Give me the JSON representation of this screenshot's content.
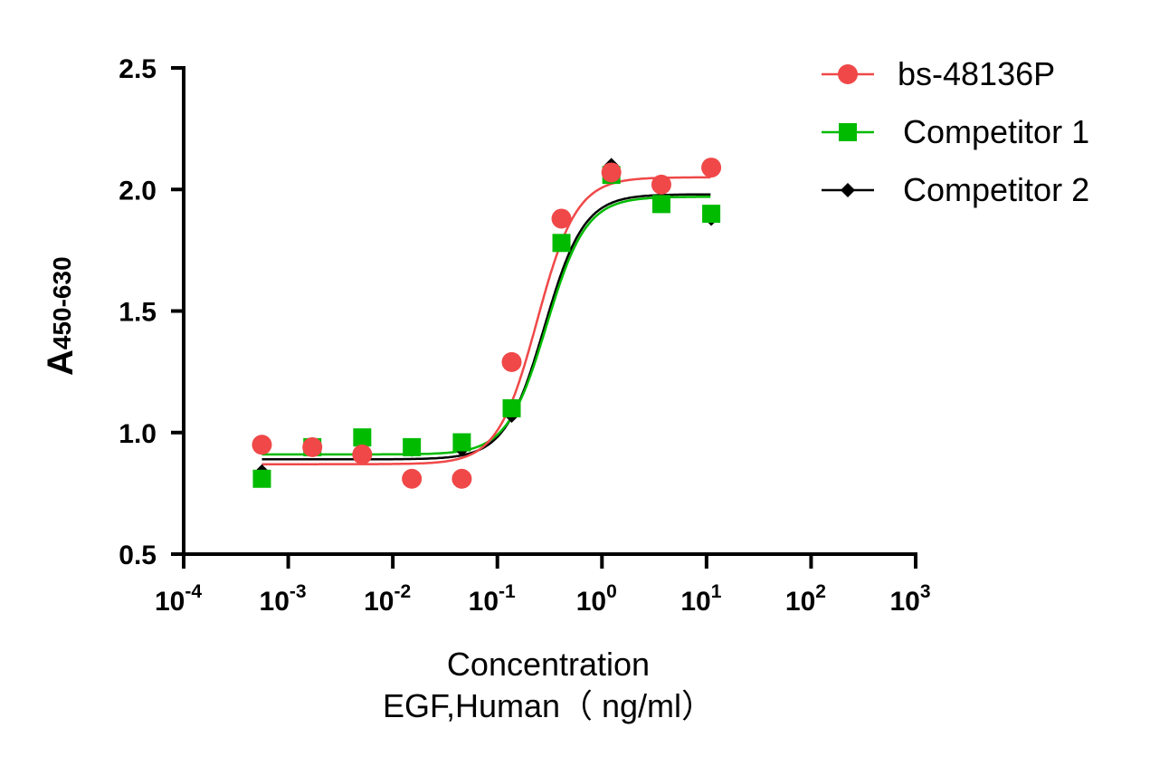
{
  "chart_data": {
    "type": "scatter",
    "title": "",
    "xlabel": "Concentration",
    "xlabel2": "EGF,Human（ ng/ml）",
    "ylabel_main": "A",
    "ylabel_sub": "450-630",
    "xscale": "log",
    "xlim_log10": [
      -4,
      3
    ],
    "ylim": [
      0.5,
      2.5
    ],
    "x_ticks": [
      {
        "base": "10",
        "exp": "-4"
      },
      {
        "base": "10",
        "exp": "-3"
      },
      {
        "base": "10",
        "exp": "-2"
      },
      {
        "base": "10",
        "exp": "-1"
      },
      {
        "base": "10",
        "exp": "0"
      },
      {
        "base": "10",
        "exp": "1"
      },
      {
        "base": "10",
        "exp": "2"
      },
      {
        "base": "10",
        "exp": "3"
      }
    ],
    "y_ticks": [
      "0.5",
      "1.0",
      "1.5",
      "2.0",
      "2.5"
    ],
    "legend_position": "top-right",
    "x": [
      0.00056,
      0.0017,
      0.0051,
      0.0152,
      0.0457,
      0.137,
      0.41,
      1.23,
      3.7,
      11.1
    ],
    "series": [
      {
        "name": "bs-48136P",
        "color": "#f04848",
        "marker": "circle",
        "values": [
          0.95,
          0.94,
          0.91,
          0.81,
          0.81,
          1.29,
          1.88,
          2.07,
          2.02,
          2.09
        ],
        "fit": {
          "bottom": 0.87,
          "top": 2.05,
          "logEC50": -0.62,
          "hill": 2.3
        }
      },
      {
        "name": "Competitor 1",
        "color": "#00bb00",
        "marker": "square",
        "values": [
          0.81,
          0.94,
          0.98,
          0.94,
          0.96,
          1.1,
          1.78,
          2.06,
          1.94,
          1.9
        ],
        "fit": {
          "bottom": 0.91,
          "top": 1.97,
          "logEC50": -0.53,
          "hill": 2.3
        }
      },
      {
        "name": "Competitor 2",
        "color": "#000000",
        "marker": "diamond",
        "values": [
          0.84,
          0.94,
          0.93,
          0.93,
          0.93,
          1.07,
          1.78,
          2.1,
          1.95,
          1.88
        ],
        "fit": {
          "bottom": 0.89,
          "top": 1.98,
          "logEC50": -0.55,
          "hill": 2.3
        }
      }
    ]
  }
}
